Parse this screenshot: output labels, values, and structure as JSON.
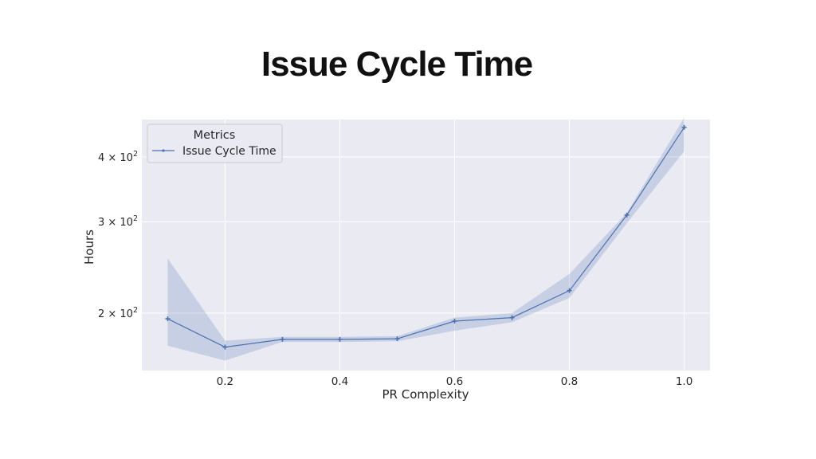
{
  "page": {
    "title": "Issue Cycle Time"
  },
  "chart_data": {
    "type": "line",
    "title": "Issue Cycle Time",
    "xlabel": "PR Complexity",
    "ylabel": "Hours",
    "x_scale": "linear",
    "y_scale": "log",
    "xlim": [
      0.055,
      1.045
    ],
    "ylim": [
      155,
      472
    ],
    "x_ticks": [
      0.2,
      0.4,
      0.6,
      0.8,
      1.0
    ],
    "x_tick_labels": [
      "0.2",
      "0.4",
      "0.6",
      "0.8",
      "1.0"
    ],
    "y_ticks": [
      200,
      300,
      400
    ],
    "y_tick_labels": [
      {
        "mantissa": "2",
        "base": "10",
        "exp": "2"
      },
      {
        "mantissa": "3",
        "base": "10",
        "exp": "2"
      },
      {
        "mantissa": "4",
        "base": "10",
        "exp": "2"
      }
    ],
    "grid": true,
    "legend": {
      "title": "Metrics",
      "position": "upper-left",
      "entries": [
        "Issue Cycle Time"
      ]
    },
    "colors": {
      "line": "#4c72b0",
      "band": "#4c72b0",
      "plot_background": "#eaeaf2",
      "grid": "#ffffff"
    },
    "series": [
      {
        "name": "Issue Cycle Time",
        "marker": "plus",
        "x": [
          0.1,
          0.2,
          0.3,
          0.4,
          0.5,
          0.6,
          0.7,
          0.8,
          0.9,
          1.0
        ],
        "y": [
          195,
          172,
          178,
          178,
          178.5,
          193,
          196,
          221,
          309,
          456
        ],
        "ci_lower": [
          173,
          162,
          176,
          176,
          176.5,
          185,
          192,
          214,
          298,
          410
        ],
        "ci_upper": [
          255,
          177,
          180,
          180,
          180.5,
          196,
          200,
          238,
          312,
          476
        ]
      }
    ]
  }
}
